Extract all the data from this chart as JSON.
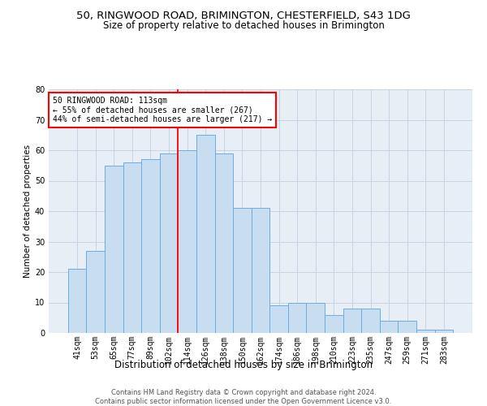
{
  "title1": "50, RINGWOOD ROAD, BRIMINGTON, CHESTERFIELD, S43 1DG",
  "title2": "Size of property relative to detached houses in Brimington",
  "xlabel": "Distribution of detached houses by size in Brimington",
  "ylabel": "Number of detached properties",
  "footer1": "Contains HM Land Registry data © Crown copyright and database right 2024.",
  "footer2": "Contains public sector information licensed under the Open Government Licence v3.0.",
  "categories": [
    "41sqm",
    "53sqm",
    "65sqm",
    "77sqm",
    "89sqm",
    "102sqm",
    "114sqm",
    "126sqm",
    "138sqm",
    "150sqm",
    "162sqm",
    "174sqm",
    "186sqm",
    "198sqm",
    "210sqm",
    "223sqm",
    "235sqm",
    "247sqm",
    "259sqm",
    "271sqm",
    "283sqm"
  ],
  "values": [
    21,
    27,
    55,
    56,
    57,
    59,
    60,
    65,
    59,
    41,
    41,
    9,
    10,
    10,
    6,
    8,
    8,
    4,
    4,
    1,
    1
  ],
  "bar_color": "#c9ddf0",
  "bar_edge_color": "#6aaee0",
  "annotation_line1": "50 RINGWOOD ROAD: 113sqm",
  "annotation_line2": "← 55% of detached houses are smaller (267)",
  "annotation_line3": "44% of semi-detached houses are larger (217) →",
  "annotation_box_color": "white",
  "annotation_box_edge": "red",
  "vline_color": "red",
  "vline_index": 6,
  "ylim": [
    0,
    80
  ],
  "yticks": [
    0,
    10,
    20,
    30,
    40,
    50,
    60,
    70,
    80
  ],
  "grid_color": "#c8d4e3",
  "background_color": "#e8eef5",
  "title1_fontsize": 9.5,
  "title2_fontsize": 8.5,
  "xlabel_fontsize": 8.5,
  "ylabel_fontsize": 7.5,
  "tick_fontsize": 7,
  "annotation_fontsize": 7,
  "footer_fontsize": 6
}
